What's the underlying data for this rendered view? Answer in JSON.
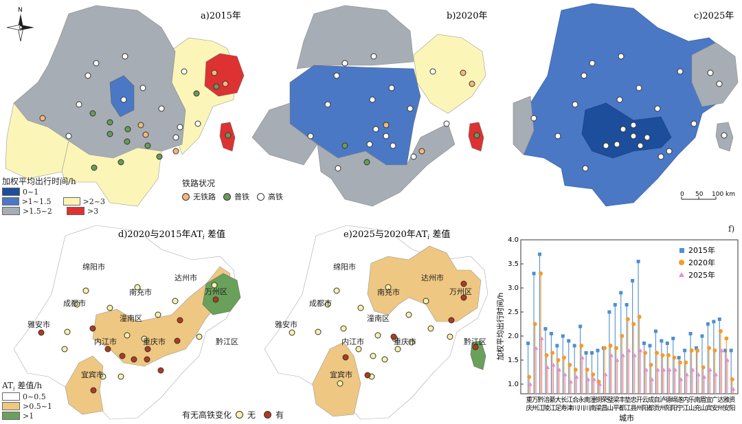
{
  "colors": {
    "c0_1": "#1c4e9c",
    "c1_15": "#4a78c4",
    "c15_2": "#a6adb5",
    "c2_3": "#fbf6b8",
    "c3": "#dd3231",
    "d0": "#ffffff",
    "d05": "#eec782",
    "d1": "#6aa15a",
    "noRail": "#f3b87a",
    "normalRail": "#6a9a57",
    "hsRail": "#ffffff",
    "noChange": "#f6f2a9",
    "change": "#b13a1d",
    "s2015": "#4d8fd1",
    "s2020": "#f59a2c",
    "s2025": "#e98ad6"
  },
  "north_label": "N",
  "panels": {
    "a": "a)2015年",
    "b": "b)2020年",
    "c": "c)2025年",
    "d_pre": "d)2020与2015年AT",
    "d_post": " 差值",
    "e_pre": "e)2025与2020年AT",
    "e_post": " 差值",
    "sub": "i",
    "f": "f)"
  },
  "legend_time": {
    "title": "加权平均出行时间/h",
    "items": [
      "0~1",
      ">1~1.5",
      ">2~3",
      ">1.5~2",
      ">3"
    ]
  },
  "legend_rail": {
    "title": "铁路状况",
    "items": [
      "无铁路",
      "普铁",
      "高铁"
    ]
  },
  "scale": {
    "labels": [
      "0",
      "50",
      "100 km"
    ]
  },
  "legend_diff": {
    "title": "AT",
    "title_sub": "i",
    "title_post": " 差值/h",
    "items": [
      "0~0.5",
      ">0.5~1",
      ">1"
    ]
  },
  "legend_hsr": {
    "title": "有无高铁变化",
    "items": [
      "无",
      "有"
    ]
  },
  "cities_d": [
    "绵阳市",
    "达州市",
    "成都市",
    "南充市",
    "万州区",
    "潼南区",
    "雅安市",
    "内江市",
    "重庆市",
    "黔江区",
    "宜宾市"
  ],
  "cities_e": [
    "绵阳市",
    "达州市",
    "成都市",
    "南充市",
    "万州区",
    "潼南区",
    "雅安市",
    "内江市",
    "重庆市",
    "黔江区",
    "宜宾市"
  ],
  "chart_data": {
    "type": "scatter",
    "title": "",
    "xlabel": "城市",
    "ylabel": "加权平均出行时间/h",
    "ylim": [
      0.8,
      4.0
    ],
    "yticks": [
      "1.0",
      "1.5",
      "2.0",
      "2.5",
      "3.0",
      "3.5",
      "4.0"
    ],
    "categories": [
      "重庆",
      "万州",
      "黔江",
      "涪陵",
      "綦江",
      "大足",
      "长寿",
      "江津",
      "合川",
      "永川",
      "南川",
      "潼南",
      "铜梁",
      "荣昌",
      "璧山",
      "梁平",
      "丰都",
      "垫江",
      "忠县",
      "开州",
      "云阳",
      "成都",
      "自贡",
      "泸州",
      "德阳",
      "绵阳",
      "遂宁",
      "内江",
      "乐山",
      "南充",
      "眉山",
      "宜宾",
      "广安",
      "达州",
      "雅安",
      "资阳"
    ],
    "series": [
      {
        "name": "2015年",
        "values": [
          1.85,
          3.3,
          3.7,
          2.15,
          2.05,
          1.8,
          2.0,
          1.9,
          1.8,
          2.2,
          1.65,
          1.65,
          1.7,
          1.75,
          2.5,
          2.65,
          2.9,
          2.65,
          3.15,
          3.55,
          1.85,
          1.8,
          2.1,
          1.9,
          1.85,
          1.95,
          1.55,
          1.7,
          2.05,
          1.75,
          2.0,
          2.25,
          2.3,
          2.35,
          1.7,
          1.7
        ]
      },
      {
        "name": "2020年",
        "values": [
          1.15,
          2.25,
          3.3,
          1.6,
          1.65,
          1.5,
          1.55,
          1.4,
          1.3,
          1.8,
          1.3,
          1.2,
          1.05,
          1.75,
          1.8,
          1.75,
          2.0,
          2.35,
          2.25,
          2.4,
          1.65,
          1.4,
          1.65,
          1.6,
          1.6,
          1.55,
          1.45,
          1.45,
          1.7,
          1.7,
          1.35,
          1.75,
          1.7,
          2.1,
          1.95,
          1.1
        ]
      },
      {
        "name": "2025年",
        "values": [
          1.0,
          1.75,
          1.95,
          1.35,
          1.4,
          1.3,
          1.2,
          1.05,
          1.15,
          1.55,
          1.1,
          1.1,
          1.0,
          1.2,
          1.6,
          1.5,
          1.6,
          1.7,
          1.6,
          1.7,
          1.3,
          1.1,
          1.3,
          1.3,
          1.3,
          1.3,
          1.1,
          1.2,
          1.3,
          1.2,
          1.15,
          1.3,
          1.2,
          1.7,
          1.5,
          0.9
        ]
      }
    ]
  }
}
